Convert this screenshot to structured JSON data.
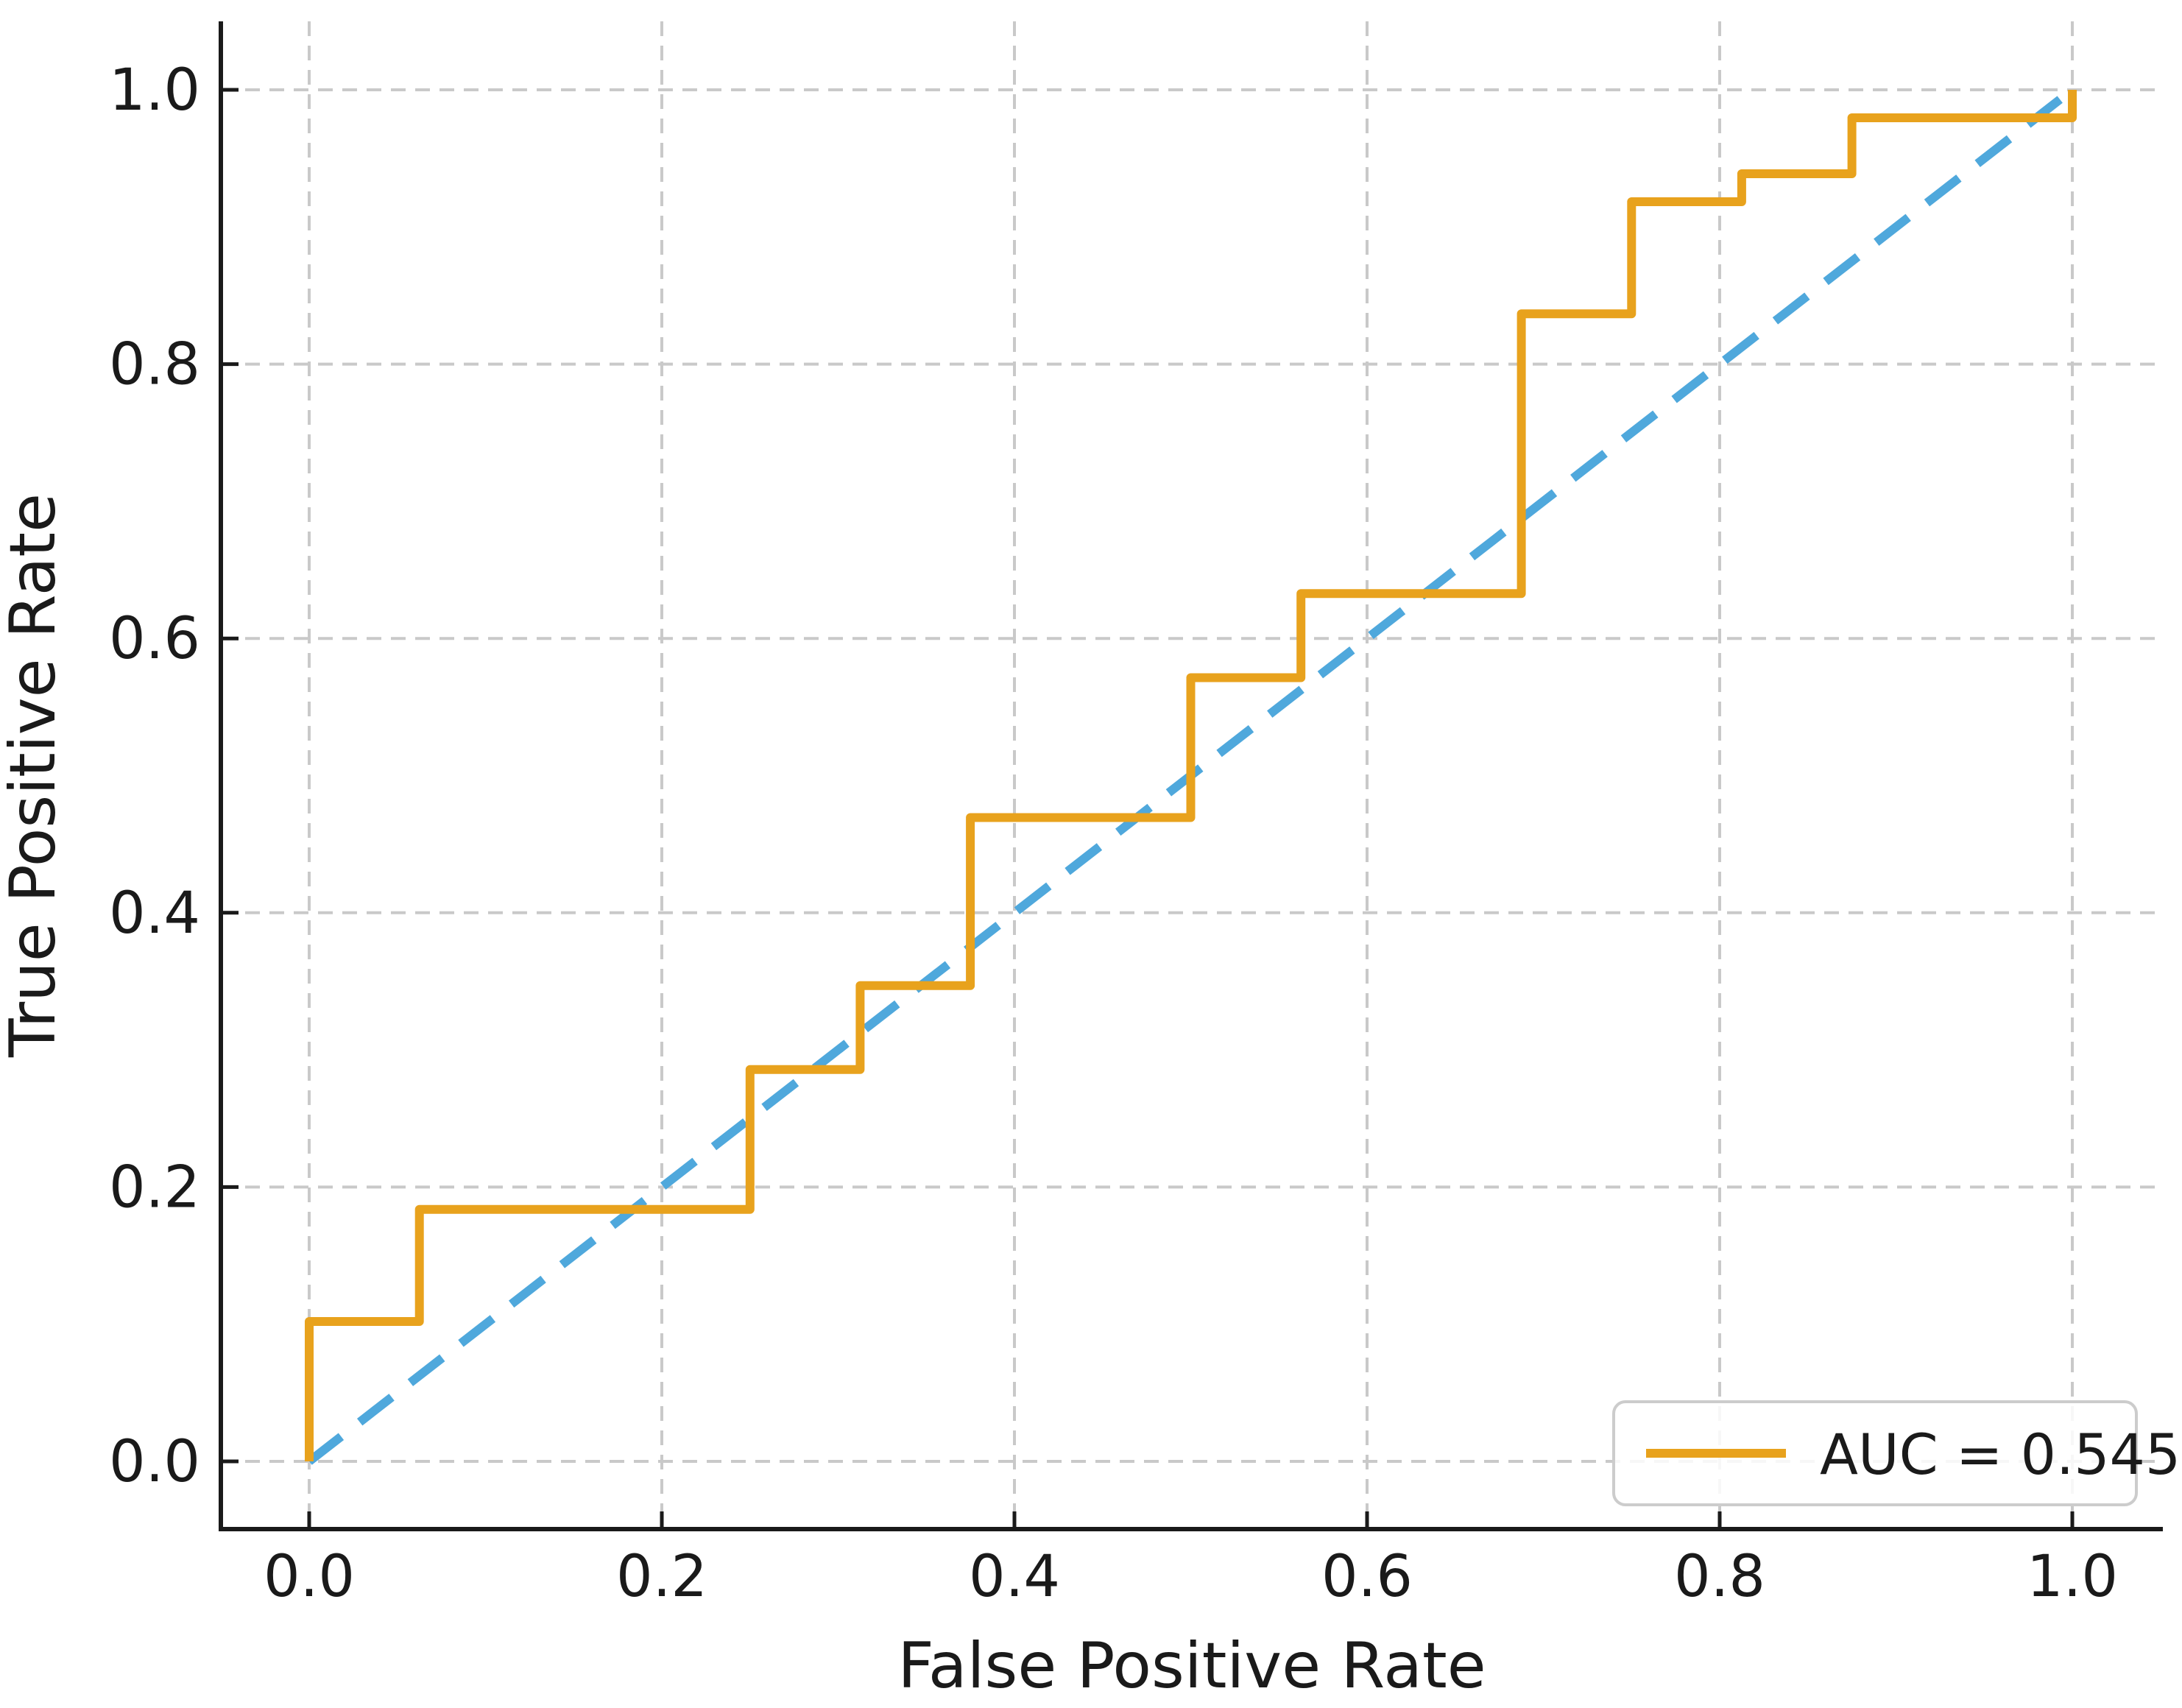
{
  "figure": {
    "background": "#FFFFFF",
    "text_color": "#1A1A1A"
  },
  "axes": {
    "x_label": "False Positive Rate",
    "y_label": "True Positive Rate",
    "x_tick_labels": [
      "0.0",
      "0.2",
      "0.4",
      "0.6",
      "0.8",
      "1.0"
    ],
    "y_tick_labels": [
      "0.0",
      "0.2",
      "0.4",
      "0.6",
      "0.8",
      "1.0"
    ],
    "x_tick_values": [
      0,
      0.2,
      0.4,
      0.6,
      0.8,
      1
    ],
    "y_tick_values": [
      0,
      0.2,
      0.4,
      0.6,
      0.8,
      1
    ],
    "grid_color": "#C9C9C9",
    "spine_color": "#1A1A1A"
  },
  "legend": {
    "label": "AUC = 0.545",
    "position": "lower-right",
    "border_color": "#CCCCCC",
    "background": "#FFFFFF",
    "sample_line_color": "#E8A21D"
  },
  "chart_data": {
    "type": "line",
    "title": "",
    "xlabel": "False Positive Rate",
    "ylabel": "True Positive Rate",
    "xlim": [
      -0.05,
      1.05
    ],
    "ylim": [
      -0.05,
      1.05
    ],
    "grid": true,
    "legend_position": "lower right",
    "x_ticks": [
      0,
      0.2,
      0.4,
      0.6,
      0.8,
      1.0
    ],
    "y_ticks": [
      0,
      0.2,
      0.4,
      0.6,
      0.8,
      1.0
    ],
    "series": [
      {
        "name": "roc-curve",
        "legend": "AUC = 0.545",
        "auc": 0.545,
        "color": "#E8A21D",
        "line_style": "solid",
        "step": true,
        "points": [
          [
            0.0,
            0.0
          ],
          [
            0.0,
            0.102
          ],
          [
            0.0625,
            0.102
          ],
          [
            0.0625,
            0.1837
          ],
          [
            0.25,
            0.1837
          ],
          [
            0.25,
            0.2857
          ],
          [
            0.3125,
            0.2857
          ],
          [
            0.3125,
            0.3469
          ],
          [
            0.375,
            0.3469
          ],
          [
            0.375,
            0.4694
          ],
          [
            0.5,
            0.4694
          ],
          [
            0.5,
            0.5714
          ],
          [
            0.5625,
            0.5714
          ],
          [
            0.5625,
            0.6327
          ],
          [
            0.6875,
            0.6327
          ],
          [
            0.6875,
            0.8367
          ],
          [
            0.75,
            0.8367
          ],
          [
            0.75,
            0.9184
          ],
          [
            0.8125,
            0.9184
          ],
          [
            0.8125,
            0.9388
          ],
          [
            0.875,
            0.9388
          ],
          [
            0.875,
            0.9796
          ],
          [
            1.0,
            0.9796
          ],
          [
            1.0,
            1.0
          ]
        ]
      },
      {
        "name": "chance-diagonal",
        "color": "#4FA8DC",
        "line_style": "dashed",
        "points": [
          [
            0.0,
            0.0
          ],
          [
            1.0,
            1.0
          ]
        ]
      }
    ]
  }
}
